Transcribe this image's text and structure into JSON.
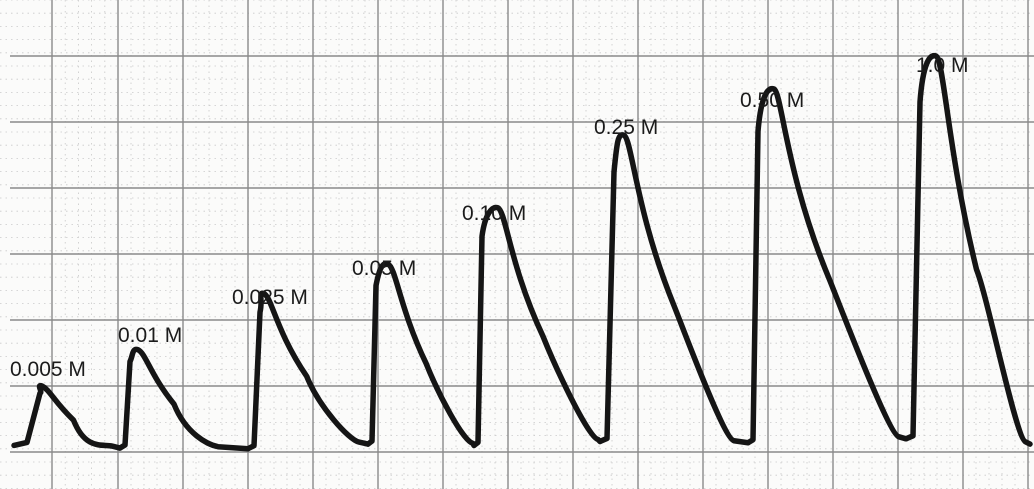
{
  "chart_data": {
    "type": "line",
    "title": "",
    "xlabel": "",
    "ylabel": "",
    "grid": true,
    "grid_color": "#8a8a8a",
    "minor_grid_color": "#c9c9c9",
    "trace_color": "#151515",
    "background": "#fbfbfa",
    "ylim": [
      0,
      7.3
    ],
    "peaks": [
      {
        "label": "0.005 M",
        "height": 1.0
      },
      {
        "label": "0.01 M",
        "height": 1.55
      },
      {
        "label": "0.025 M",
        "height": 2.4
      },
      {
        "label": "0.05 M",
        "height": 2.85
      },
      {
        "label": "0.10 M",
        "height": 3.7
      },
      {
        "label": "0.25 M",
        "height": 4.8
      },
      {
        "label": "0.50 M",
        "height": 5.5
      },
      {
        "label": "1.0 M",
        "height": 6.0
      }
    ]
  }
}
